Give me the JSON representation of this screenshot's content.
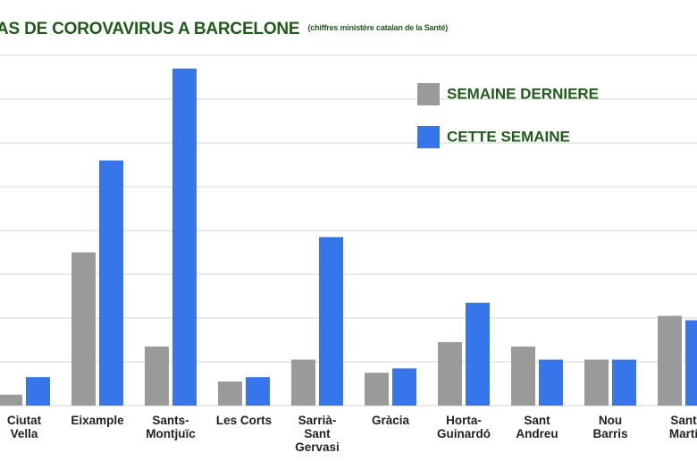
{
  "colors": {
    "previous": "#9a9a9a",
    "current": "#3776ea",
    "title": "#1f5b19",
    "grid": "#d6d6d6"
  },
  "chart_data": {
    "type": "bar",
    "title": "AS DE COROVAVIRUS A BARCELONE",
    "subtitle": "(chiffres ministère catalan de la Santé)",
    "categories": [
      [
        "Ciutat",
        "Vella"
      ],
      [
        "Eixample"
      ],
      [
        "Sants-",
        "Montjuïc"
      ],
      [
        "Les Corts"
      ],
      [
        "Sarrià-",
        "Sant",
        "Gervasi"
      ],
      [
        "Gràcia"
      ],
      [
        "Horta-",
        "Guinardó"
      ],
      [
        "Sant",
        "Andreu"
      ],
      [
        "Nou",
        "Barris"
      ],
      [
        "Sant",
        "Martí"
      ]
    ],
    "series": [
      {
        "name": "SEMAINE DERNIERE",
        "color": "#9a9a9a",
        "values": [
          2.5,
          35,
          13.5,
          5.5,
          10.5,
          7.5,
          14.5,
          13.5,
          10.5,
          20.5
        ]
      },
      {
        "name": "CETTE SEMAINE",
        "color": "#3776ea",
        "values": [
          6.5,
          56,
          77,
          6.5,
          38.5,
          8.5,
          23.5,
          10.5,
          10.5,
          19.5
        ]
      }
    ],
    "ylim": [
      0,
      80
    ],
    "grid": true,
    "legend": "top-right"
  }
}
